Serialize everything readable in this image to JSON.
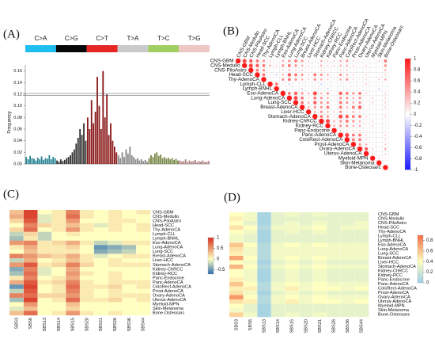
{
  "chart_data": [
    {
      "type": "bar",
      "panel": "(A)",
      "ylabel": "Frequency",
      "groups": [
        {
          "name": "C>A",
          "color": "#1ebff0",
          "bar_color": "#2a8596",
          "values": [
            0.012,
            0.008,
            0.014,
            0.01,
            0.009,
            0.006,
            0.011,
            0.008,
            0.013,
            0.007,
            0.01,
            0.009,
            0.015,
            0.008,
            0.012,
            0.01
          ]
        },
        {
          "name": "C>G",
          "color": "#050708",
          "bar_color": "#333333",
          "values": [
            0.006,
            0.004,
            0.008,
            0.005,
            0.007,
            0.01,
            0.012,
            0.015,
            0.02,
            0.025,
            0.035,
            0.045,
            0.06,
            0.05,
            0.07,
            0.04
          ]
        },
        {
          "name": "C>T",
          "color": "#e62725",
          "bar_color": "#8b1a1a",
          "values": [
            0.08,
            0.06,
            0.11,
            0.07,
            0.09,
            0.15,
            0.1,
            0.06,
            0.16,
            0.08,
            0.12,
            0.05,
            0.07,
            0.04,
            0.03,
            0.02
          ]
        },
        {
          "name": "T>A",
          "color": "#cbcacb",
          "bar_color": "#8a8a8a",
          "values": [
            0.015,
            0.01,
            0.02,
            0.012,
            0.025,
            0.018,
            0.03,
            0.015,
            0.012,
            0.008,
            0.01,
            0.006,
            0.008,
            0.005,
            0.007,
            0.004
          ]
        },
        {
          "name": "T>C",
          "color": "#a1ce63",
          "bar_color": "#7a8a4a",
          "values": [
            0.01,
            0.015,
            0.012,
            0.018,
            0.02,
            0.014,
            0.016,
            0.01,
            0.012,
            0.009,
            0.011,
            0.008,
            0.01,
            0.007,
            0.009,
            0.006
          ]
        },
        {
          "name": "T>G",
          "color": "#edc8c5",
          "bar_color": "#b08080",
          "values": [
            0.006,
            0.004,
            0.005,
            0.008,
            0.003,
            0.006,
            0.004,
            0.005,
            0.007,
            0.003,
            0.005,
            0.004,
            0.006,
            0.003,
            0.004,
            0.005
          ]
        }
      ],
      "ylim": [
        0,
        0.165
      ],
      "yticks": [
        {
          "value": 0,
          "label": "0.00"
        },
        0.02,
        0.04,
        0.06,
        0.08,
        {
          "value": 0.1,
          "label": "0.10"
        },
        0.12,
        0.14,
        0.16
      ]
    },
    {
      "type": "correlation",
      "panel": "(B)",
      "categories": [
        "CNS-GBM",
        "CNS-Medullo",
        "CNS-PiloAstro",
        "Head-SCC",
        "Thy-AdenoCA",
        "Lymph-CLL",
        "Lymph-BNHL",
        "Eso-AdenoCA",
        "Lung-AdenoCA",
        "Lung-SCC",
        "Breast-AdenoCA",
        "Liver-HCC",
        "Stomach-AdenoCA",
        "Kidney-ChRCC",
        "Kidney-RCC",
        "Panc-Endocrine",
        "Panc-AdenoCA",
        "ColoRect-AdenoCA",
        "Prost-AdenoCA",
        "Ovary-AdenoCA",
        "Uterus-AdenoCA",
        "Myeloid-MPN",
        "Skin-Melanoma",
        "Bone-Osteosarc"
      ],
      "values": [
        [
          1,
          0.8,
          0.7,
          0.6,
          0.5,
          0.3,
          0.2,
          0.4,
          0.5,
          0.6,
          0.5,
          0.3,
          0.2,
          0.4,
          0.3,
          0.3,
          0.4,
          0.5,
          0.3,
          0.2,
          0.2,
          0.1,
          0.3,
          0.6
        ],
        [
          1,
          0.8,
          0.7,
          0.6,
          0.4,
          0.3,
          0.5,
          0.6,
          0.5,
          0.4,
          0.3,
          0.2,
          0.4,
          0.3,
          0.3,
          0.4,
          0.4,
          0.3,
          0.2,
          0.3,
          0.1,
          0.2,
          0.5
        ],
        [
          1,
          0.6,
          0.5,
          0.2,
          0.1,
          0.3,
          0.4,
          0.3,
          0.3,
          0.2,
          0.1,
          0.3,
          0.2,
          0.2,
          0.3,
          0.3,
          0.2,
          0.1,
          0.2,
          0.0,
          0.1,
          0.4
        ],
        [
          1,
          0.6,
          -0.2,
          -0.3,
          0.4,
          0.7,
          0.6,
          0.5,
          0.3,
          0.6,
          0.5,
          0.4,
          0.2,
          0.5,
          0.4,
          0.3,
          0.2,
          0.3,
          0.1,
          0.2,
          0.3
        ],
        [
          1,
          0.2,
          0.1,
          0.5,
          0.6,
          0.5,
          0.4,
          0.3,
          0.5,
          0.4,
          0.3,
          0.2,
          0.4,
          0.5,
          0.3,
          0.2,
          0.3,
          0.1,
          0.3,
          0.4
        ],
        [
          1,
          0.6,
          -0.2,
          -0.3,
          -0.1,
          -0.2,
          -0.1,
          -0.2,
          -0.3,
          -0.2,
          0.1,
          -0.2,
          -0.1,
          -0.2,
          -0.1,
          0.3,
          -0.1,
          -0.2,
          -0.1
        ],
        [
          1,
          -0.1,
          -0.2,
          -0.1,
          -0.3,
          -0.1,
          -0.2,
          -0.2,
          -0.3,
          0.1,
          -0.1,
          -0.2,
          -0.1,
          -0.2,
          0.2,
          -0.1,
          -0.3,
          -0.1
        ],
        [
          1,
          0.6,
          0.7,
          0.5,
          0.4,
          0.8,
          0.4,
          0.5,
          0.2,
          0.7,
          0.6,
          0.5,
          0.6,
          0.3,
          0.2,
          0.1,
          0.3
        ],
        [
          1,
          0.8,
          0.6,
          0.3,
          0.6,
          0.5,
          0.4,
          0.2,
          0.5,
          0.5,
          0.4,
          0.5,
          0.2,
          0.3,
          0.1,
          0.3
        ],
        [
          1,
          0.6,
          0.4,
          0.7,
          0.5,
          0.5,
          0.2,
          0.6,
          0.5,
          0.4,
          0.5,
          0.2,
          0.3,
          0.1,
          0.3
        ],
        [
          1,
          0.4,
          0.5,
          0.5,
          0.6,
          0.2,
          0.6,
          0.4,
          0.6,
          0.7,
          0.2,
          0.2,
          0.1,
          0.3
        ],
        [
          1,
          0.4,
          0.5,
          0.4,
          0.3,
          0.5,
          0.3,
          0.4,
          0.3,
          0.2,
          0.2,
          0.1,
          0.2
        ],
        [
          1,
          0.6,
          0.5,
          0.3,
          0.8,
          0.7,
          0.6,
          0.6,
          0.3,
          0.2,
          0.1,
          0.3
        ],
        [
          1,
          0.8,
          0.4,
          0.5,
          0.6,
          0.5,
          0.4,
          0.2,
          0.3,
          0.0,
          0.2
        ],
        [
          1,
          0.4,
          0.5,
          0.5,
          0.4,
          0.4,
          0.2,
          0.3,
          0.1,
          0.2
        ],
        [
          1,
          0.3,
          0.3,
          0.3,
          0.3,
          0.2,
          0.2,
          0.1,
          0.2
        ],
        [
          1,
          0.8,
          0.6,
          0.6,
          0.3,
          0.2,
          0.1,
          0.3
        ],
        [
          1,
          0.6,
          0.6,
          0.3,
          0.2,
          0.1,
          0.3
        ],
        [
          1,
          0.5,
          0.4,
          0.2,
          0.1,
          0.3
        ],
        [
          1,
          0.7,
          0.3,
          0.1,
          0.4
        ],
        [
          1,
          0.3,
          0.1,
          0.3
        ],
        [
          1,
          0.3,
          0.2
        ],
        [
          1,
          0.1
        ],
        [
          1
        ]
      ],
      "colorscale": [
        [
          -1,
          "#1a1aff"
        ],
        [
          0,
          "#ffffff"
        ],
        [
          1,
          "#ff1a1a"
        ]
      ],
      "clim": [
        -1,
        1
      ],
      "colorbar_ticks": [
        1,
        0.8,
        0.6,
        0.4,
        0.2,
        0,
        -0.2,
        -0.4,
        -0.6,
        -0.8,
        -1
      ]
    },
    {
      "type": "heatmap",
      "panel": "(C)",
      "x_categories": [
        "SBS3",
        "SBS6",
        "SBS13",
        "SBS14",
        "SBS15",
        "SBS20",
        "SBS21",
        "SBS26",
        "SBS36",
        "SBS44"
      ],
      "y_categories": [
        "CNS-GBM",
        "CNS-Medullo",
        "CNS-PiloAstro",
        "Head-SCC",
        "Thy-AdenoCA",
        "Lymph-CLL",
        "Lymph-BNHL",
        "Eso-AdenoCA",
        "Lung-AdenoCA",
        "Lung-SCC",
        "Breast-AdenoCA",
        "Liver-HCC",
        "Stomach-AdenoCA",
        "Kidney-ChRCC",
        "Kidney-RCC",
        "Panc-Endocrine",
        "Panc-AdenoCA",
        "ColoRect-AdenoCA",
        "Prost-AdenoCA",
        "Ovary-AdenoCA",
        "Uterus-AdenoCA",
        "Myeloid-MPN",
        "Skin-Melanoma",
        "Bone-Osteosarc"
      ],
      "values": [
        [
          0.3,
          0.9,
          0.0,
          0.1,
          0.6,
          0.1,
          0.0,
          0.1,
          0.0,
          0.1
        ],
        [
          0.4,
          0.9,
          -0.1,
          0.1,
          0.7,
          0.1,
          0.0,
          0.1,
          0.0,
          0.0
        ],
        [
          0.2,
          0.8,
          -0.1,
          0.1,
          0.5,
          0.0,
          0.0,
          0.1,
          0.1,
          0.0
        ],
        [
          0.0,
          0.6,
          0.2,
          0.1,
          0.3,
          0.1,
          -0.1,
          0.1,
          0.0,
          0.1
        ],
        [
          0.2,
          0.7,
          0.0,
          0.1,
          0.5,
          0.1,
          0.0,
          0.1,
          0.0,
          0.1
        ],
        [
          -0.2,
          0.2,
          -0.2,
          0.0,
          0.1,
          0.0,
          0.0,
          0.0,
          0.0,
          0.0
        ],
        [
          -0.3,
          0.1,
          -0.2,
          0.0,
          0.0,
          0.0,
          0.0,
          0.0,
          0.0,
          0.0
        ],
        [
          0.5,
          0.6,
          0.1,
          0.2,
          0.4,
          0.1,
          -0.2,
          -0.1,
          0.1,
          0.1
        ],
        [
          0.1,
          0.4,
          0.1,
          0.1,
          0.2,
          0.0,
          -0.5,
          -0.4,
          -0.3,
          0.0
        ],
        [
          0.0,
          0.3,
          0.1,
          0.1,
          0.1,
          0.0,
          -0.4,
          -0.3,
          -0.2,
          0.0
        ],
        [
          0.6,
          0.5,
          0.3,
          0.2,
          0.4,
          0.1,
          -0.1,
          0.0,
          0.1,
          0.1
        ],
        [
          -0.2,
          0.4,
          0.0,
          0.1,
          0.3,
          0.1,
          0.0,
          0.1,
          0.0,
          0.0
        ],
        [
          0.5,
          0.8,
          0.1,
          0.2,
          0.6,
          0.2,
          0.0,
          0.1,
          0.1,
          0.1
        ],
        [
          -0.4,
          0.6,
          -0.1,
          0.0,
          0.4,
          0.0,
          0.0,
          0.0,
          0.0,
          0.0
        ],
        [
          -0.3,
          0.7,
          -0.1,
          0.0,
          0.5,
          0.1,
          0.0,
          0.1,
          0.0,
          0.0
        ],
        [
          0.1,
          0.6,
          0.0,
          0.1,
          0.4,
          0.0,
          0.0,
          0.1,
          0.0,
          0.0
        ],
        [
          0.4,
          0.8,
          0.1,
          0.2,
          0.6,
          0.1,
          0.0,
          0.1,
          0.1,
          0.1
        ],
        [
          -0.5,
          0.9,
          0.0,
          0.1,
          0.7,
          0.1,
          0.1,
          0.2,
          0.0,
          0.1
        ],
        [
          -0.2,
          0.8,
          0.0,
          0.1,
          0.6,
          0.1,
          0.0,
          0.1,
          0.0,
          0.0
        ],
        [
          0.6,
          0.7,
          0.2,
          0.2,
          0.5,
          0.1,
          0.0,
          0.1,
          0.1,
          0.1
        ],
        [
          -0.3,
          0.9,
          0.0,
          0.1,
          0.7,
          0.1,
          0.1,
          0.2,
          0.0,
          0.1
        ],
        [
          0.0,
          0.5,
          0.0,
          0.0,
          0.3,
          0.0,
          0.0,
          0.0,
          0.0,
          0.0
        ],
        [
          -0.1,
          0.3,
          0.0,
          0.0,
          0.2,
          0.0,
          0.0,
          0.0,
          0.0,
          0.0
        ],
        [
          0.3,
          0.7,
          0.0,
          0.1,
          0.5,
          0.1,
          0.0,
          0.1,
          0.0,
          0.0
        ]
      ],
      "colorscale": [
        [
          -0.7,
          "#2b6cb0"
        ],
        [
          0,
          "#ffffc0"
        ],
        [
          1,
          "#d7301f"
        ]
      ],
      "clim": [
        -0.7,
        1
      ],
      "colorbar_ticks": [
        1,
        0.5,
        0,
        -0.5
      ]
    },
    {
      "type": "heatmap",
      "panel": "(D)",
      "x_categories": [
        "SBS3",
        "SBS6",
        "SBS13",
        "SBS14",
        "SBS15",
        "SBS20",
        "SBS21",
        "SBS26",
        "SBS36",
        "SBS44"
      ],
      "y_categories": [
        "CNS-GBM",
        "CNS-Medullo",
        "CNS-PiloAstro",
        "Head-SCC",
        "Thy-AdenoCA",
        "Lymph-CLL",
        "Lymph-BNHL",
        "Eso-AdenoCA",
        "Lung-AdenoCA",
        "Lung-SCC",
        "Breast-AdenoCA",
        "Liver-HCC",
        "Stomach-AdenoCA",
        "Kidney-ChRCC",
        "Kidney-RCC",
        "Panc-Endocrine",
        "Panc-AdenoCA",
        "ColoRect-AdenoCA",
        "Prost-AdenoCA",
        "Ovary-AdenoCA",
        "Uterus-AdenoCA",
        "Myeloid-MPN",
        "Skin-Melanoma",
        "Bone-Osteosarc"
      ],
      "values": [
        [
          0.4,
          0.35,
          0.05,
          0.3,
          0.35,
          0.3,
          0.35,
          0.3,
          0.3,
          0.3
        ],
        [
          0.45,
          0.35,
          0.05,
          0.3,
          0.3,
          0.3,
          0.3,
          0.3,
          0.3,
          0.3
        ],
        [
          0.4,
          0.3,
          0.05,
          0.3,
          0.35,
          0.3,
          0.35,
          0.3,
          0.3,
          0.35
        ],
        [
          0.5,
          0.4,
          0.1,
          0.35,
          0.35,
          0.35,
          0.4,
          0.3,
          0.35,
          0.35
        ],
        [
          0.4,
          0.35,
          0.05,
          0.3,
          0.35,
          0.3,
          0.35,
          0.3,
          0.3,
          0.3
        ],
        [
          0.35,
          0.3,
          0.05,
          0.3,
          0.3,
          0.3,
          0.3,
          0.3,
          0.3,
          0.3
        ],
        [
          0.35,
          0.3,
          0.05,
          0.3,
          0.3,
          0.3,
          0.3,
          0.3,
          0.3,
          0.3
        ],
        [
          0.6,
          0.4,
          0.1,
          0.35,
          0.4,
          0.35,
          0.4,
          0.35,
          0.35,
          0.35
        ],
        [
          0.5,
          0.35,
          0.1,
          0.35,
          0.35,
          0.35,
          0.35,
          0.35,
          0.35,
          0.35
        ],
        [
          0.45,
          0.35,
          0.1,
          0.35,
          0.35,
          0.35,
          0.35,
          0.35,
          0.35,
          0.35
        ],
        [
          0.7,
          0.4,
          0.1,
          0.35,
          0.4,
          0.35,
          0.4,
          0.35,
          0.35,
          0.35
        ],
        [
          0.4,
          0.35,
          0.05,
          0.3,
          0.35,
          0.3,
          0.35,
          0.3,
          0.3,
          0.3
        ],
        [
          0.65,
          0.4,
          0.1,
          0.35,
          0.4,
          0.35,
          0.4,
          0.35,
          0.35,
          0.35
        ],
        [
          0.4,
          0.35,
          0.05,
          0.3,
          0.35,
          0.3,
          0.35,
          0.3,
          0.3,
          0.3
        ],
        [
          0.4,
          0.35,
          0.05,
          0.3,
          0.35,
          0.3,
          0.35,
          0.3,
          0.3,
          0.3
        ],
        [
          0.45,
          0.35,
          0.05,
          0.3,
          0.35,
          0.3,
          0.35,
          0.3,
          0.3,
          0.3
        ],
        [
          0.6,
          0.4,
          0.1,
          0.35,
          0.4,
          0.35,
          0.4,
          0.35,
          0.35,
          0.35
        ],
        [
          0.45,
          0.45,
          0.1,
          0.35,
          0.45,
          0.35,
          0.4,
          0.4,
          0.35,
          0.4
        ],
        [
          0.5,
          0.35,
          0.05,
          0.3,
          0.35,
          0.3,
          0.35,
          0.3,
          0.3,
          0.3
        ],
        [
          0.75,
          0.4,
          0.1,
          0.35,
          0.4,
          0.35,
          0.4,
          0.35,
          0.35,
          0.35
        ],
        [
          0.5,
          0.45,
          0.1,
          0.35,
          0.45,
          0.35,
          0.4,
          0.4,
          0.35,
          0.4
        ],
        [
          0.4,
          0.3,
          0.05,
          0.3,
          0.3,
          0.3,
          0.3,
          0.3,
          0.3,
          0.3
        ],
        [
          0.35,
          0.3,
          0.05,
          0.3,
          0.3,
          0.3,
          0.3,
          0.3,
          0.3,
          0.3
        ],
        [
          0.55,
          0.35,
          0.05,
          0.3,
          0.35,
          0.3,
          0.35,
          0.3,
          0.3,
          0.3
        ]
      ],
      "colorscale": [
        [
          0,
          "#9ccde6"
        ],
        [
          0.4,
          "#ffffc0"
        ],
        [
          0.9,
          "#f46d43"
        ]
      ],
      "clim": [
        0,
        0.9
      ],
      "colorbar_ticks": [
        0.8,
        0.6,
        0.4,
        0.2,
        0
      ]
    }
  ]
}
